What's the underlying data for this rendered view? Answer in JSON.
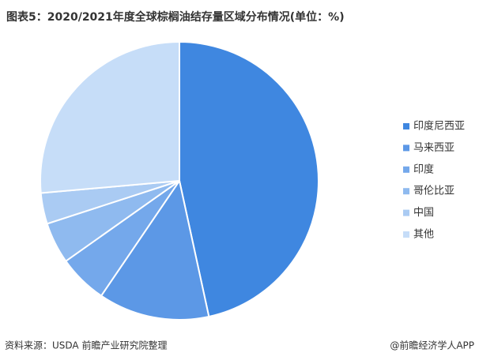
{
  "chart_data": {
    "type": "pie",
    "title": "图表5：2020/2021年度全球棕榈油结存量区域分布情况(单位：%)",
    "categories": [
      "印度尼西亚",
      "马来西亚",
      "印度",
      "哥伦比亚",
      "中国",
      "其他"
    ],
    "values": [
      46.6,
      12.9,
      5.7,
      4.8,
      3.6,
      26.4
    ],
    "colors": [
      "#3f87e0",
      "#5c98e6",
      "#74a8eb",
      "#8fbaef",
      "#aacbf3",
      "#c6ddf8"
    ],
    "source": "资料来源：USDA 前瞻产业研究院整理",
    "credit": "@前瞻经济学人APP"
  }
}
